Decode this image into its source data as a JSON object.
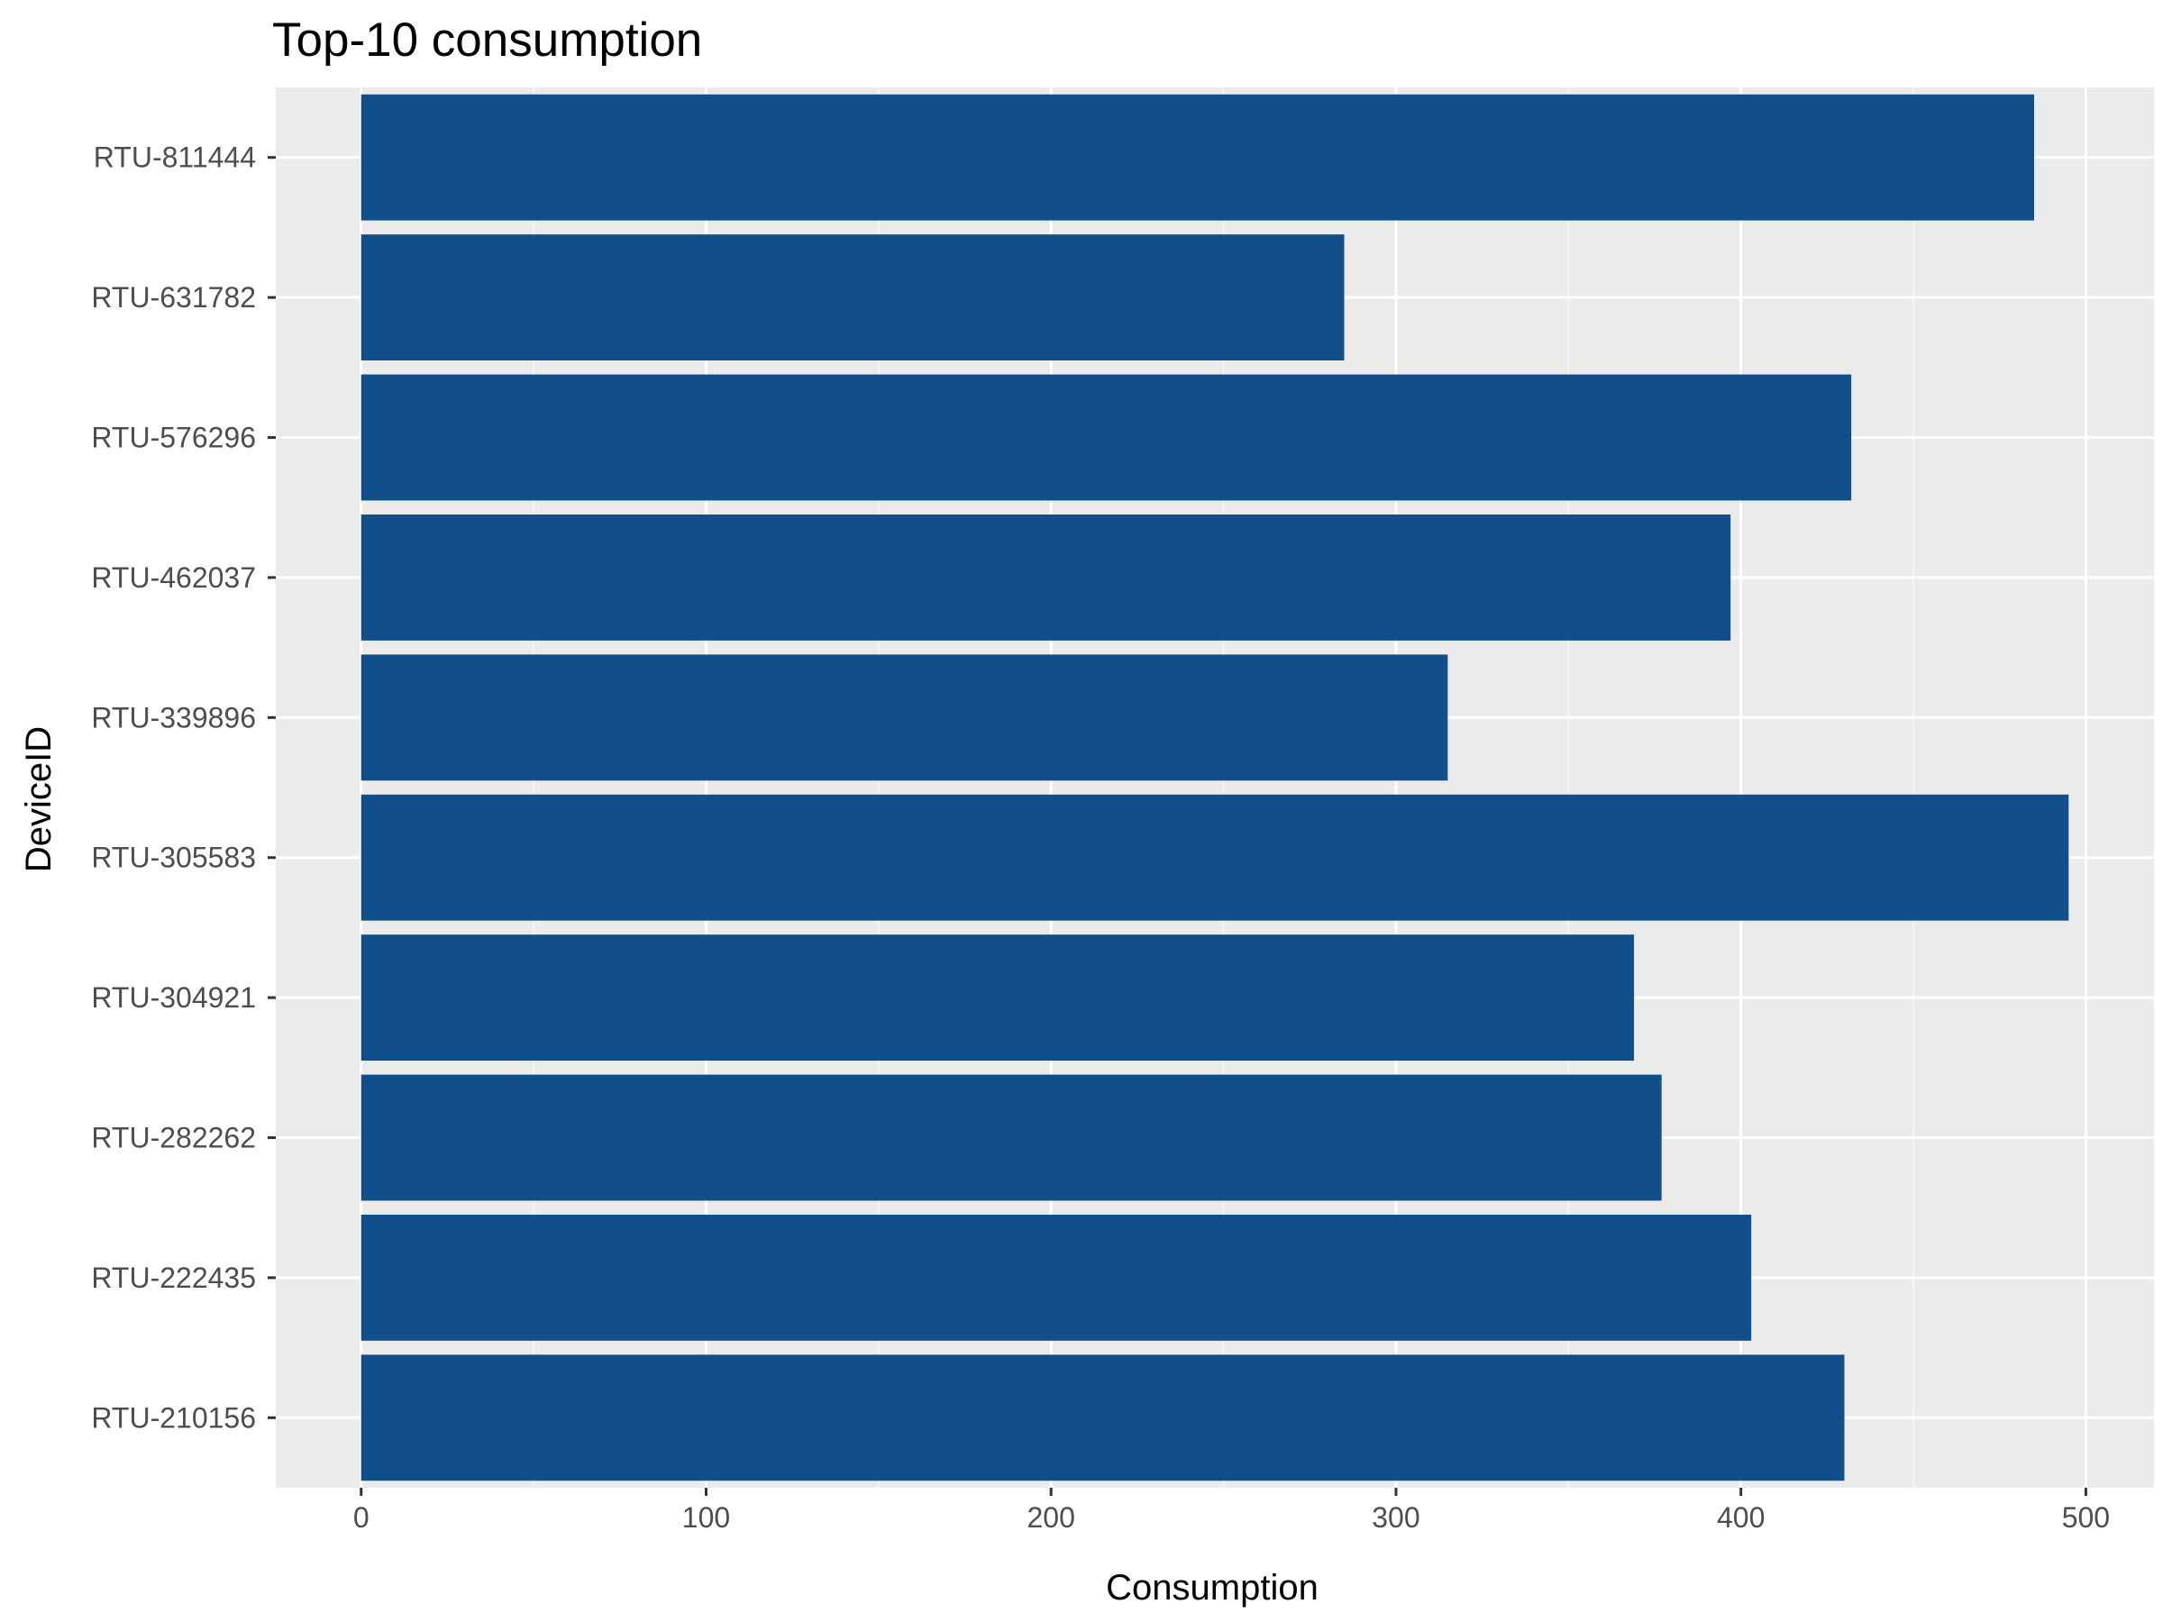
{
  "chart_data": {
    "type": "bar",
    "orientation": "horizontal",
    "title": "Top-10 consumption",
    "xlabel": "Consumption",
    "ylabel": "DeviceID",
    "categories": [
      "RTU-210156",
      "RTU-222435",
      "RTU-282262",
      "RTU-304921",
      "RTU-305583",
      "RTU-339896",
      "RTU-462037",
      "RTU-576296",
      "RTU-631782",
      "RTU-811444"
    ],
    "values": [
      430,
      403,
      377,
      369,
      495,
      315,
      397,
      432,
      285,
      485
    ],
    "xlim": [
      -24.75,
      519.75
    ],
    "xticks": [
      0,
      100,
      200,
      300,
      400,
      500
    ],
    "grid": true,
    "legend": "none",
    "colors": {
      "bar": "#114f8a",
      "panel": "#ebebeb",
      "grid_major": "#ffffff",
      "grid_minor": "#f7f7f7",
      "tick": "#333333"
    }
  }
}
